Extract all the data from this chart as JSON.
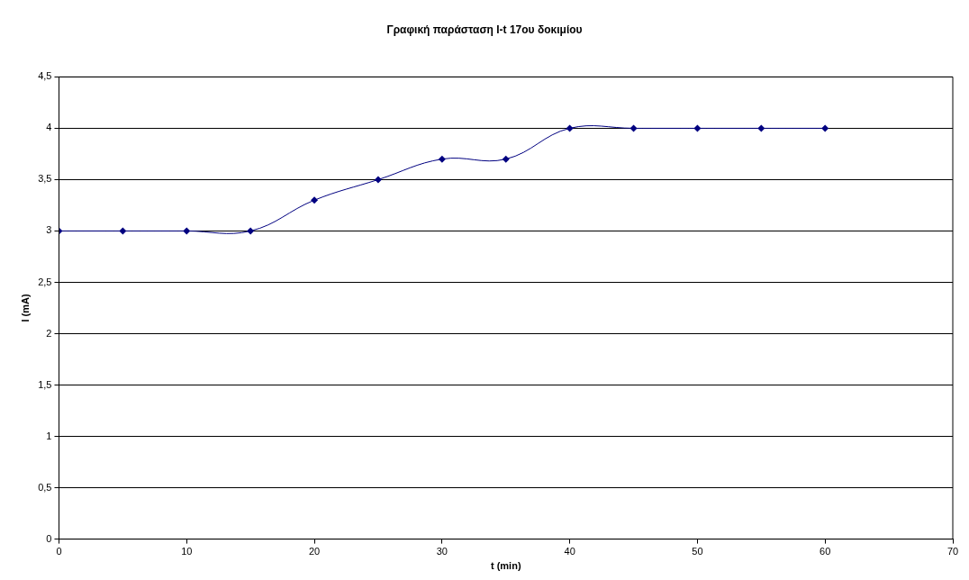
{
  "chart_data": {
    "type": "line",
    "title": "Γραφική παράσταση I-t 17ου δοκιμίου",
    "xlabel": "t (min)",
    "ylabel": "I (mA)",
    "x": [
      0,
      5,
      10,
      15,
      20,
      25,
      30,
      35,
      40,
      45,
      50,
      55,
      60
    ],
    "series": [
      {
        "color": "#000080",
        "values": [
          3,
          3,
          3,
          3,
          3.3,
          3.5,
          3.7,
          3.7,
          4,
          4,
          4,
          4,
          4
        ]
      }
    ],
    "xlim": [
      0,
      70
    ],
    "xticks": [
      0,
      10,
      20,
      30,
      40,
      50,
      60,
      70
    ],
    "ylim": [
      0,
      4.5
    ],
    "yticks": [
      0,
      {
        "value": 0.5,
        "label": "0,5"
      },
      1,
      {
        "value": 1.5,
        "label": "1,5"
      },
      2,
      {
        "value": 2.5,
        "label": "2,5"
      },
      3,
      {
        "value": 3.5,
        "label": "3,5"
      },
      4,
      {
        "value": 4.5,
        "label": "4,5"
      }
    ],
    "grid": "y",
    "legend": false,
    "marker": "diamond",
    "line_style": "solid"
  }
}
